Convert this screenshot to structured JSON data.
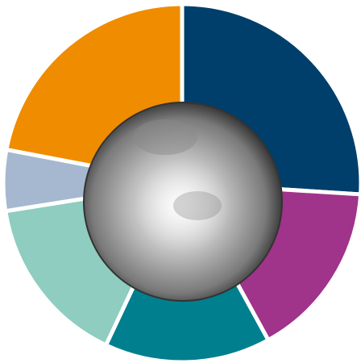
{
  "chart_data": {
    "type": "pie",
    "values": [
      26,
      16,
      15,
      15.5,
      5.5,
      22
    ],
    "colors": [
      "#003f6b",
      "#a0338a",
      "#007f8f",
      "#8ecdc0",
      "#a5b8d0",
      "#f08c00"
    ],
    "start_angle": 0,
    "clockwise": true
  }
}
